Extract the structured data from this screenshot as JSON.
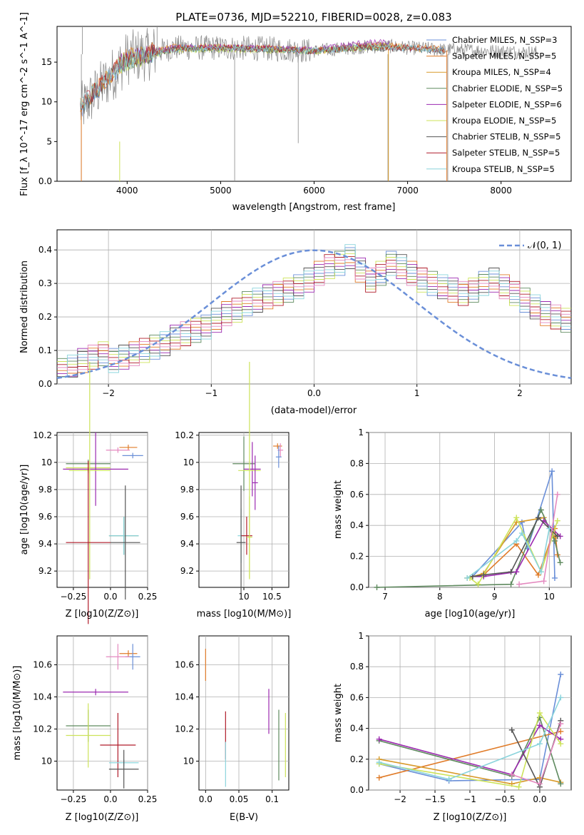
{
  "title": "PLATE=0736, MJD=52210, FIBERID=0028, z=0.083",
  "colors": {
    "c1": "#6a8fd8",
    "c2": "#e07b28",
    "c3": "#d99a2a",
    "c4": "#5f8a5f",
    "c5": "#9c2ab0",
    "c6": "#cde35a",
    "c7": "#555555",
    "c8": "#b01c2a",
    "c9": "#8ad4dc",
    "c10": "#e48ac0",
    "spec": "#888888"
  },
  "chart_data": [
    {
      "id": "spectrum",
      "type": "line",
      "xlabel": "wavelength [Angstrom, rest frame]",
      "ylabel": "Flux [f_λ 10^-17 erg cm^-2 s^-1 A^-1]",
      "xlim": [
        3250,
        8750
      ],
      "ylim": [
        0,
        19.5
      ],
      "xticks": [
        4000,
        5000,
        6000,
        7000,
        8000
      ],
      "yticks": [
        0,
        5,
        10,
        15
      ],
      "legend_position": "upper right",
      "legend": [
        "Chabrier MILES, N_SSP=3",
        "Salpeter MILES, N_SSP=5",
        "Kroupa MILES, N_SSP=4",
        "Chabrier ELODIE, N_SSP=5",
        "Salpeter ELODIE, N_SSP=6",
        "Kroupa ELODIE, N_SSP=5",
        "Chabrier STELIB, N_SSP=5",
        "Salpeter STELIB, N_SSP=5",
        "Kroupa STELIB, N_SSP=5"
      ],
      "series": [
        {
          "name": "Chabrier MILES, N_SSP=3",
          "x": [
            3500,
            4000,
            4500,
            5000,
            5500,
            6000,
            6500,
            6800,
            7000,
            7200,
            7400
          ],
          "y": [
            9,
            15.5,
            16.8,
            16.8,
            16.7,
            16.4,
            16.9,
            17,
            16.8,
            16.7,
            16.5
          ]
        },
        {
          "name": "Salpeter MILES, N_SSP=5",
          "x": [
            3500,
            4000,
            4500,
            5000,
            5500,
            6000,
            6500,
            6800,
            7000,
            7200,
            7400
          ],
          "y": [
            9.5,
            15.7,
            16.9,
            16.9,
            16.8,
            16.5,
            17.1,
            17.2,
            16.9,
            16.8,
            16.6
          ]
        },
        {
          "name": "Kroupa MILES, N_SSP=4",
          "x": [
            3500,
            4000,
            4500,
            5000,
            5500,
            6000,
            6500,
            6800,
            7000,
            7200,
            7400
          ],
          "y": [
            9.3,
            15.6,
            16.7,
            16.9,
            16.7,
            16.3,
            16.9,
            17.1,
            16.8,
            16.6,
            16.5
          ]
        },
        {
          "name": "Chabrier ELODIE, N_SSP=5",
          "x": [
            3900,
            4200,
            4500,
            5000,
            5500,
            6000,
            6500,
            6800
          ],
          "y": [
            14.5,
            15.8,
            16.6,
            16.7,
            16.6,
            16.4,
            16.9,
            17
          ]
        },
        {
          "name": "Salpeter ELODIE, N_SSP=6",
          "x": [
            3900,
            4200,
            4500,
            5000,
            5500,
            6000,
            6500,
            6800
          ],
          "y": [
            14.8,
            16,
            16.8,
            16.9,
            16.7,
            16.6,
            17.4,
            17.5
          ]
        },
        {
          "name": "Kroupa ELODIE, N_SSP=5",
          "x": [
            3900,
            4200,
            4500,
            5000,
            5500,
            6000,
            6500,
            6800
          ],
          "y": [
            14.4,
            15.7,
            16.5,
            16.6,
            16.5,
            16.3,
            16.8,
            16.9
          ]
        },
        {
          "name": "Chabrier STELIB, N_SSP=5",
          "x": [
            3500,
            4000,
            4500,
            5000,
            5500,
            6000,
            6500,
            7000,
            7400
          ],
          "y": [
            9.2,
            15.3,
            16.6,
            16.7,
            16.6,
            16.3,
            16.8,
            16.7,
            16.4
          ]
        },
        {
          "name": "Salpeter STELIB, N_SSP=5",
          "x": [
            3500,
            4000,
            4500,
            5000,
            5500,
            6000,
            6500,
            7000,
            7400
          ],
          "y": [
            9.6,
            15.5,
            16.7,
            16.8,
            16.7,
            16.4,
            16.9,
            16.8,
            16.5
          ]
        },
        {
          "name": "Kroupa STELIB, N_SSP=5",
          "x": [
            3500,
            4000,
            4500,
            5000,
            5500,
            6000,
            6500,
            7000,
            7400
          ],
          "y": [
            9.4,
            15.4,
            16.6,
            16.8,
            16.7,
            16.4,
            16.9,
            16.8,
            16.5
          ]
        }
      ]
    },
    {
      "id": "hist",
      "type": "bar",
      "xlabel": "(data-model)/error",
      "ylabel": "Normed distribution",
      "xlim": [
        -2.5,
        2.5
      ],
      "ylim": [
        0,
        0.46
      ],
      "xticks": [
        -2,
        -1,
        0,
        1,
        2
      ],
      "yticks": [
        0.0,
        0.1,
        0.2,
        0.3,
        0.4
      ],
      "legend": [
        "𝒩(0, 1)"
      ],
      "legend_position": "upper right",
      "bin_width": 0.1,
      "bin_start": -2.5,
      "hist_values": [
        0.04,
        0.05,
        0.07,
        0.08,
        0.09,
        0.07,
        0.08,
        0.09,
        0.1,
        0.11,
        0.12,
        0.14,
        0.15,
        0.16,
        0.17,
        0.19,
        0.21,
        0.22,
        0.24,
        0.25,
        0.26,
        0.27,
        0.28,
        0.29,
        0.31,
        0.33,
        0.35,
        0.36,
        0.38,
        0.34,
        0.31,
        0.33,
        0.36,
        0.35,
        0.33,
        0.31,
        0.3,
        0.29,
        0.28,
        0.27,
        0.28,
        0.3,
        0.31,
        0.29,
        0.27,
        0.25,
        0.23,
        0.21,
        0.2,
        0.19
      ]
    },
    {
      "id": "zage",
      "type": "scatter",
      "xlabel": "Z [log10(Z/Z⊙)]",
      "ylabel": "age [log10(age/yr)]",
      "xlim": [
        -0.36,
        0.25
      ],
      "ylim": [
        9.08,
        10.22
      ],
      "xticks": [
        -0.25,
        0.0,
        0.25
      ],
      "yticks": [
        9.2,
        9.4,
        9.6,
        9.8,
        10.0,
        10.2
      ]
    },
    {
      "id": "massage",
      "type": "scatter",
      "xlabel": "mass [log10(M/M⊙)]",
      "ylabel": "",
      "xlim": [
        9.2,
        10.8
      ],
      "ylim": [
        9.08,
        10.22
      ],
      "xticks": [
        10.0,
        10.5
      ],
      "yticks": [
        9.2,
        9.4,
        9.6,
        9.8,
        10.0,
        10.2
      ]
    },
    {
      "id": "agew",
      "type": "line",
      "xlabel": "age [log10(age/yr)]",
      "ylabel": "mass weight",
      "xlim": [
        6.7,
        10.4
      ],
      "ylim": [
        0,
        1
      ],
      "xticks": [
        7,
        8,
        9,
        10
      ],
      "yticks": [
        0.0,
        0.2,
        0.4,
        0.6,
        0.8,
        1.0
      ],
      "series": [
        {
          "x": [
            8.6,
            9.5,
            9.6,
            10.05,
            10.1
          ],
          "y": [
            0.07,
            0.42,
            0.25,
            0.75,
            0.06
          ]
        },
        {
          "x": [
            8.8,
            9.4,
            9.8,
            10.1,
            10.15
          ],
          "y": [
            0.08,
            0.28,
            0.08,
            0.38,
            0.21
          ]
        },
        {
          "x": [
            8.5,
            8.8,
            9.4,
            9.9,
            10.1
          ],
          "y": [
            0.06,
            0.09,
            0.42,
            0.45,
            0.32
          ]
        },
        {
          "x": [
            6.85,
            9.3,
            9.85,
            10.1,
            10.2
          ],
          "y": [
            0.0,
            0.02,
            0.5,
            0.3,
            0.16
          ]
        },
        {
          "x": [
            8.6,
            8.8,
            9.4,
            9.9,
            10.2
          ],
          "y": [
            0.07,
            0.07,
            0.1,
            0.43,
            0.33
          ]
        },
        {
          "x": [
            8.55,
            8.7,
            9.4,
            9.85,
            10.15
          ],
          "y": [
            0.06,
            0.02,
            0.45,
            0.1,
            0.43
          ]
        },
        {
          "x": [
            8.6,
            8.8,
            9.3,
            9.8,
            10.15
          ],
          "y": [
            0.07,
            0.08,
            0.1,
            0.45,
            0.33
          ]
        },
        {
          "x": [
            8.5,
            9.4,
            9.5,
            9.85,
            10.0
          ],
          "y": [
            0.06,
            0.3,
            0.35,
            0.1,
            0.38
          ]
        },
        {
          "x": [
            9.45,
            9.9,
            10.15
          ],
          "y": [
            0.02,
            0.04,
            0.6
          ]
        }
      ]
    },
    {
      "id": "zmass",
      "type": "scatter",
      "xlabel": "Z [log10(Z/Z⊙)]",
      "ylabel": "mass [log10(M/M⊙)]",
      "xlim": [
        -0.36,
        0.25
      ],
      "ylim": [
        9.82,
        10.78
      ],
      "xticks": [
        -0.25,
        0.0,
        0.25
      ],
      "yticks": [
        10.0,
        10.2,
        10.4,
        10.6
      ]
    },
    {
      "id": "ebvmass",
      "type": "scatter",
      "xlabel": "E(B-V)",
      "ylabel": "",
      "xlim": [
        -0.01,
        0.125
      ],
      "ylim": [
        9.82,
        10.78
      ],
      "xticks": [
        0.0,
        0.05,
        0.1
      ],
      "yticks": [
        10.0,
        10.2,
        10.4,
        10.6
      ]
    },
    {
      "id": "zw",
      "type": "line",
      "xlabel": "Z [log10(Z/Z⊙)]",
      "ylabel": "mass weight",
      "xlim": [
        -2.45,
        0.45
      ],
      "ylim": [
        0,
        1
      ],
      "xticks": [
        -2.0,
        -1.5,
        -1.0,
        -0.5,
        0.0
      ],
      "yticks": [
        0.0,
        0.2,
        0.4,
        0.6,
        0.8,
        1.0
      ],
      "series": [
        {
          "x": [
            -2.3,
            -1.3,
            0.0,
            0.3
          ],
          "y": [
            0.17,
            0.06,
            0.07,
            0.75
          ]
        },
        {
          "x": [
            -2.3,
            0.3
          ],
          "y": [
            0.08,
            0.38
          ]
        },
        {
          "x": [
            -2.3,
            -0.4,
            0.0,
            0.3
          ],
          "y": [
            0.2,
            0.04,
            0.08,
            0.05
          ]
        },
        {
          "x": [
            -2.3,
            -0.4,
            0.0,
            0.3
          ],
          "y": [
            0.32,
            0.09,
            0.47,
            0.04
          ]
        },
        {
          "x": [
            -2.3,
            -0.4,
            0.0,
            0.3
          ],
          "y": [
            0.33,
            0.1,
            0.42,
            0.33
          ]
        },
        {
          "x": [
            -2.3,
            -0.3,
            0.0,
            0.3
          ],
          "y": [
            0.17,
            0.02,
            0.5,
            0.3
          ]
        },
        {
          "x": [
            -0.4,
            0.0,
            0.3
          ],
          "y": [
            0.39,
            0.02,
            0.45
          ]
        },
        {
          "x": [
            -2.3,
            -1.3,
            0.0,
            0.3
          ],
          "y": [
            0.18,
            0.07,
            0.3,
            0.6
          ]
        },
        {
          "x": [
            -0.4,
            0.0,
            0.3
          ],
          "y": [
            0.1,
            0.04,
            0.43
          ]
        }
      ]
    }
  ]
}
